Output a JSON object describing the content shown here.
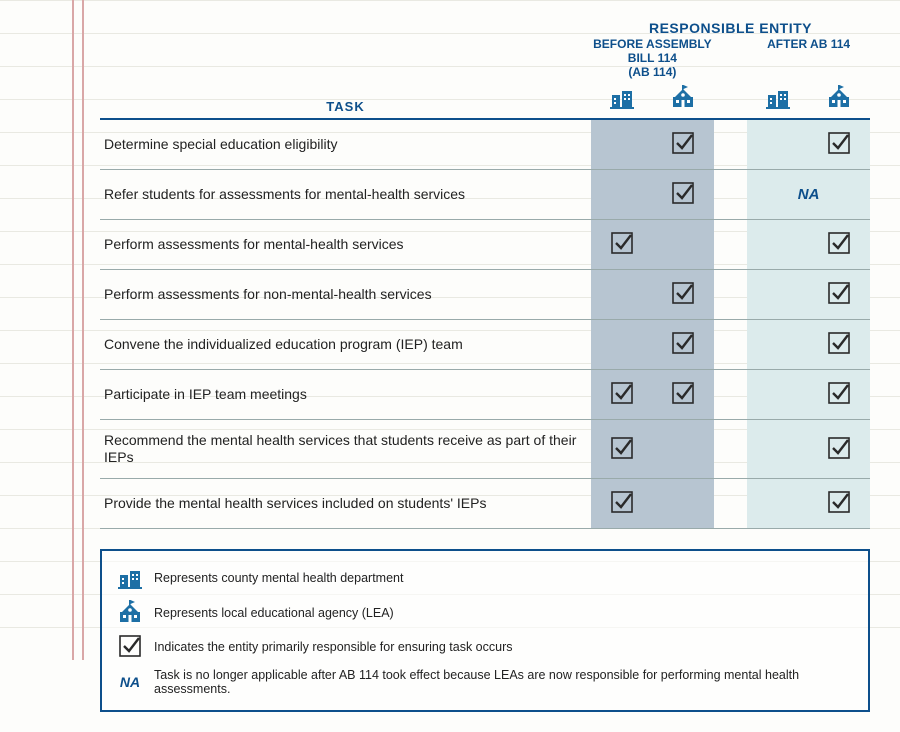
{
  "colors": {
    "header_text": "#0d4f8b",
    "body_text": "#222222",
    "rule_line": "#99aaaa",
    "header_rule": "#0d4f8b",
    "before_shade": "#b7c5d1",
    "after_shade": "#dcebec",
    "legend_border": "#0d4f8b",
    "icon_blue": "#1d6fa5",
    "check_stroke": "#2a2a2a"
  },
  "header": {
    "responsible_entity": "RESPONSIBLE ENTITY",
    "before": "BEFORE ASSEMBLY BILL 114\n(AB 114)",
    "after": "AFTER AB 114",
    "task_label": "TASK"
  },
  "tasks": [
    {
      "label": "Determine special education eligibility",
      "before_county": "",
      "before_lea": "check",
      "after_county": "",
      "after_lea": "check"
    },
    {
      "label": "Refer students for assessments for mental-health services",
      "before_county": "",
      "before_lea": "check",
      "after_county": "na",
      "after_lea": ""
    },
    {
      "label": "Perform assessments for mental-health services",
      "before_county": "check",
      "before_lea": "",
      "after_county": "",
      "after_lea": "check"
    },
    {
      "label": "Perform assessments for non-mental-health services",
      "before_county": "",
      "before_lea": "check",
      "after_county": "",
      "after_lea": "check"
    },
    {
      "label": "Convene the individualized education program (IEP) team",
      "before_county": "",
      "before_lea": "check",
      "after_county": "",
      "after_lea": "check"
    },
    {
      "label": "Participate in IEP team meetings",
      "before_county": "check",
      "before_lea": "check",
      "after_county": "",
      "after_lea": "check"
    },
    {
      "label": "Recommend the mental health services that students receive as part of their IEPs",
      "before_county": "check",
      "before_lea": "",
      "after_county": "",
      "after_lea": "check"
    },
    {
      "label": "Provide the mental health services included on students' IEPs",
      "before_county": "check",
      "before_lea": "",
      "after_county": "",
      "after_lea": "check"
    }
  ],
  "legend": {
    "county": "Represents county mental health department",
    "lea": "Represents local educational agency (LEA)",
    "check": "Indicates the entity primarily responsible for ensuring task occurs",
    "na_label": "NA",
    "na": "Task is no longer applicable after AB 114 took effect because LEAs are now responsible for performing mental health assessments."
  }
}
